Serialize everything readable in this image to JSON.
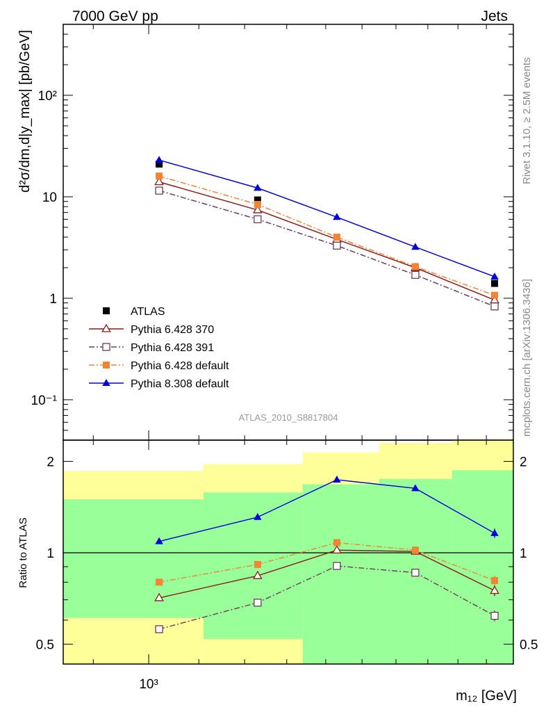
{
  "header": {
    "left_title": "7000 GeV pp",
    "right_title": "Jets"
  },
  "side_labels": {
    "rivet": "Rivet 3.1.10, ≥ 2.5M events",
    "mcplots": "mcplots.cern.ch [arXiv:1306.3436]"
  },
  "analysis_label": "ATLAS_2010_S8817804",
  "colors": {
    "data": "#000000",
    "p370": "#8b1a1a",
    "p391": "#6e3b57",
    "p6def": "#f28436",
    "p8def": "#0000dd",
    "band_inner": "#99ff99",
    "band_outer": "#ffff99"
  },
  "chart_data": [
    {
      "type": "line",
      "panel": "main",
      "ylabel": "d²σ/dm,d|y_max| [pb/GeV]",
      "log_x": true,
      "log_y": true,
      "xlim": [
        850,
        2000
      ],
      "ylim": [
        0.04,
        500
      ],
      "x_tick_labels": [
        "10³"
      ],
      "y_tick_labels": [
        "10⁻¹",
        "1",
        "10",
        "10²"
      ],
      "legend_position": "bottom-left",
      "x": [
        1020,
        1230,
        1430,
        1660,
        1930
      ],
      "series": [
        {
          "name": "ATLAS",
          "marker": "filled-square",
          "values": [
            21,
            9.3,
            3.6,
            2.0,
            1.4
          ]
        },
        {
          "name": "Pythia 6.428 370",
          "marker": "open-triangle",
          "line": "solid",
          "values": [
            14,
            7.4,
            3.8,
            2.0,
            0.96
          ]
        },
        {
          "name": "Pythia 6.428 391",
          "marker": "open-square",
          "line": "dash-dot",
          "values": [
            11.5,
            6.0,
            3.3,
            1.7,
            0.83
          ]
        },
        {
          "name": "Pythia 6.428 default",
          "marker": "filled-square",
          "line": "dash-dot",
          "values": [
            16,
            8.4,
            4.0,
            2.05,
            1.07
          ]
        },
        {
          "name": "Pythia 8.308 default",
          "marker": "filled-triangle",
          "line": "solid",
          "values": [
            23,
            12.2,
            6.3,
            3.2,
            1.63
          ]
        }
      ]
    },
    {
      "type": "line",
      "panel": "ratio",
      "xlabel": "m₁₂ [GeV]",
      "ylabel": "Ratio to ATLAS",
      "log_x": true,
      "log_y": true,
      "xlim": [
        850,
        2000
      ],
      "ylim": [
        0.43,
        2.35
      ],
      "x_tick_labels": [
        "10³"
      ],
      "y_tick_labels": [
        "0.5",
        "1",
        "2"
      ],
      "x": [
        1020,
        1230,
        1430,
        1660,
        1930
      ],
      "bands": {
        "bin_edges": [
          850,
          1110,
          1340,
          1550,
          1780,
          2000
        ],
        "inner": [
          {
            "lo": 0.61,
            "hi": 1.5
          },
          {
            "lo": 0.52,
            "hi": 1.58
          },
          {
            "lo": 0.43,
            "hi": 1.68
          },
          {
            "lo": 0.43,
            "hi": 1.75
          },
          {
            "lo": 0.43,
            "hi": 1.87
          }
        ],
        "outer": [
          {
            "lo": 0.43,
            "hi": 1.86
          },
          {
            "lo": 0.43,
            "hi": 1.96
          },
          {
            "lo": 0.43,
            "hi": 2.14
          },
          {
            "lo": 0.43,
            "hi": 2.3
          },
          {
            "lo": 0.43,
            "hi": 2.35
          }
        ]
      },
      "series": [
        {
          "name": "Pythia 6.428 370",
          "values": [
            0.71,
            0.84,
            1.02,
            1.01,
            0.75
          ],
          "errors": [
            0.005,
            0.006,
            0.01,
            0.015,
            0.03
          ]
        },
        {
          "name": "Pythia 6.428 391",
          "values": [
            0.56,
            0.685,
            0.905,
            0.86,
            0.62
          ],
          "errors": [
            0.005,
            0.006,
            0.01,
            0.015,
            0.025
          ]
        },
        {
          "name": "Pythia 6.428 default",
          "values": [
            0.8,
            0.915,
            1.08,
            1.02,
            0.81
          ],
          "errors": [
            0.005,
            0.006,
            0.01,
            0.015,
            0.03
          ]
        },
        {
          "name": "Pythia 8.308 default",
          "values": [
            1.09,
            1.31,
            1.74,
            1.63,
            1.16
          ],
          "errors": [
            0.01,
            0.012,
            0.015,
            0.03,
            0.04
          ]
        }
      ]
    }
  ]
}
